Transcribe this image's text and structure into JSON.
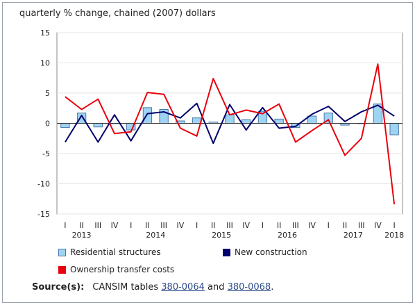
{
  "chart_data": {
    "type": "bar+line",
    "ylabel": "quarterly % change, chained (2007) dollars",
    "ylim": [
      -15,
      15
    ],
    "yticks": [
      15,
      10,
      5,
      0,
      -5,
      -10,
      -15
    ],
    "quarters": [
      "I",
      "II",
      "III",
      "IV",
      "I",
      "II",
      "III",
      "IV",
      "I",
      "II",
      "III",
      "IV",
      "I",
      "II",
      "III",
      "IV",
      "I",
      "II",
      "III",
      "IV",
      "I"
    ],
    "years": [
      {
        "label": "2013",
        "index": 1
      },
      {
        "label": "2014",
        "index": 5.5
      },
      {
        "label": "2015",
        "index": 9.5
      },
      {
        "label": "2016",
        "index": 13.5
      },
      {
        "label": "2017",
        "index": 17.5
      },
      {
        "label": "2018",
        "index": 20
      }
    ],
    "series": [
      {
        "name": "Residential structures",
        "kind": "bar",
        "color": "#9fd3f3",
        "stroke": "#4a78a8",
        "values": [
          -0.7,
          1.7,
          -0.6,
          0.0,
          -1.1,
          2.6,
          2.3,
          0.4,
          0.9,
          0.2,
          1.4,
          0.6,
          2.0,
          0.7,
          -0.7,
          1.2,
          1.7,
          -0.3,
          0.0,
          3.2,
          -1.9
        ]
      },
      {
        "name": "New construction",
        "kind": "line",
        "color": "#00006e",
        "values": [
          -3.1,
          1.3,
          -3.1,
          1.4,
          -2.9,
          1.6,
          1.9,
          0.9,
          3.3,
          -3.3,
          3.1,
          -1.1,
          2.6,
          -0.8,
          -0.5,
          1.5,
          2.8,
          0.3,
          1.9,
          3.0,
          1.2
        ]
      },
      {
        "name": "Ownership transfer costs",
        "kind": "line",
        "color": "#e8000b",
        "values": [
          4.4,
          2.3,
          4.0,
          -1.7,
          -1.4,
          5.1,
          4.8,
          -0.8,
          -2.1,
          7.4,
          1.4,
          2.2,
          1.6,
          3.2,
          -3.1,
          -1.2,
          0.6,
          -5.3,
          -2.5,
          9.8,
          -13.4
        ]
      }
    ]
  },
  "legend": {
    "residential": "Residential structures",
    "new_construction": "New construction",
    "ownership": "Ownership transfer costs"
  },
  "source": {
    "label": "Source(s):",
    "text_before": "CANSIM tables ",
    "link1": "380-0064",
    "text_mid": " and ",
    "link2": "380-0068",
    "text_after": "."
  }
}
